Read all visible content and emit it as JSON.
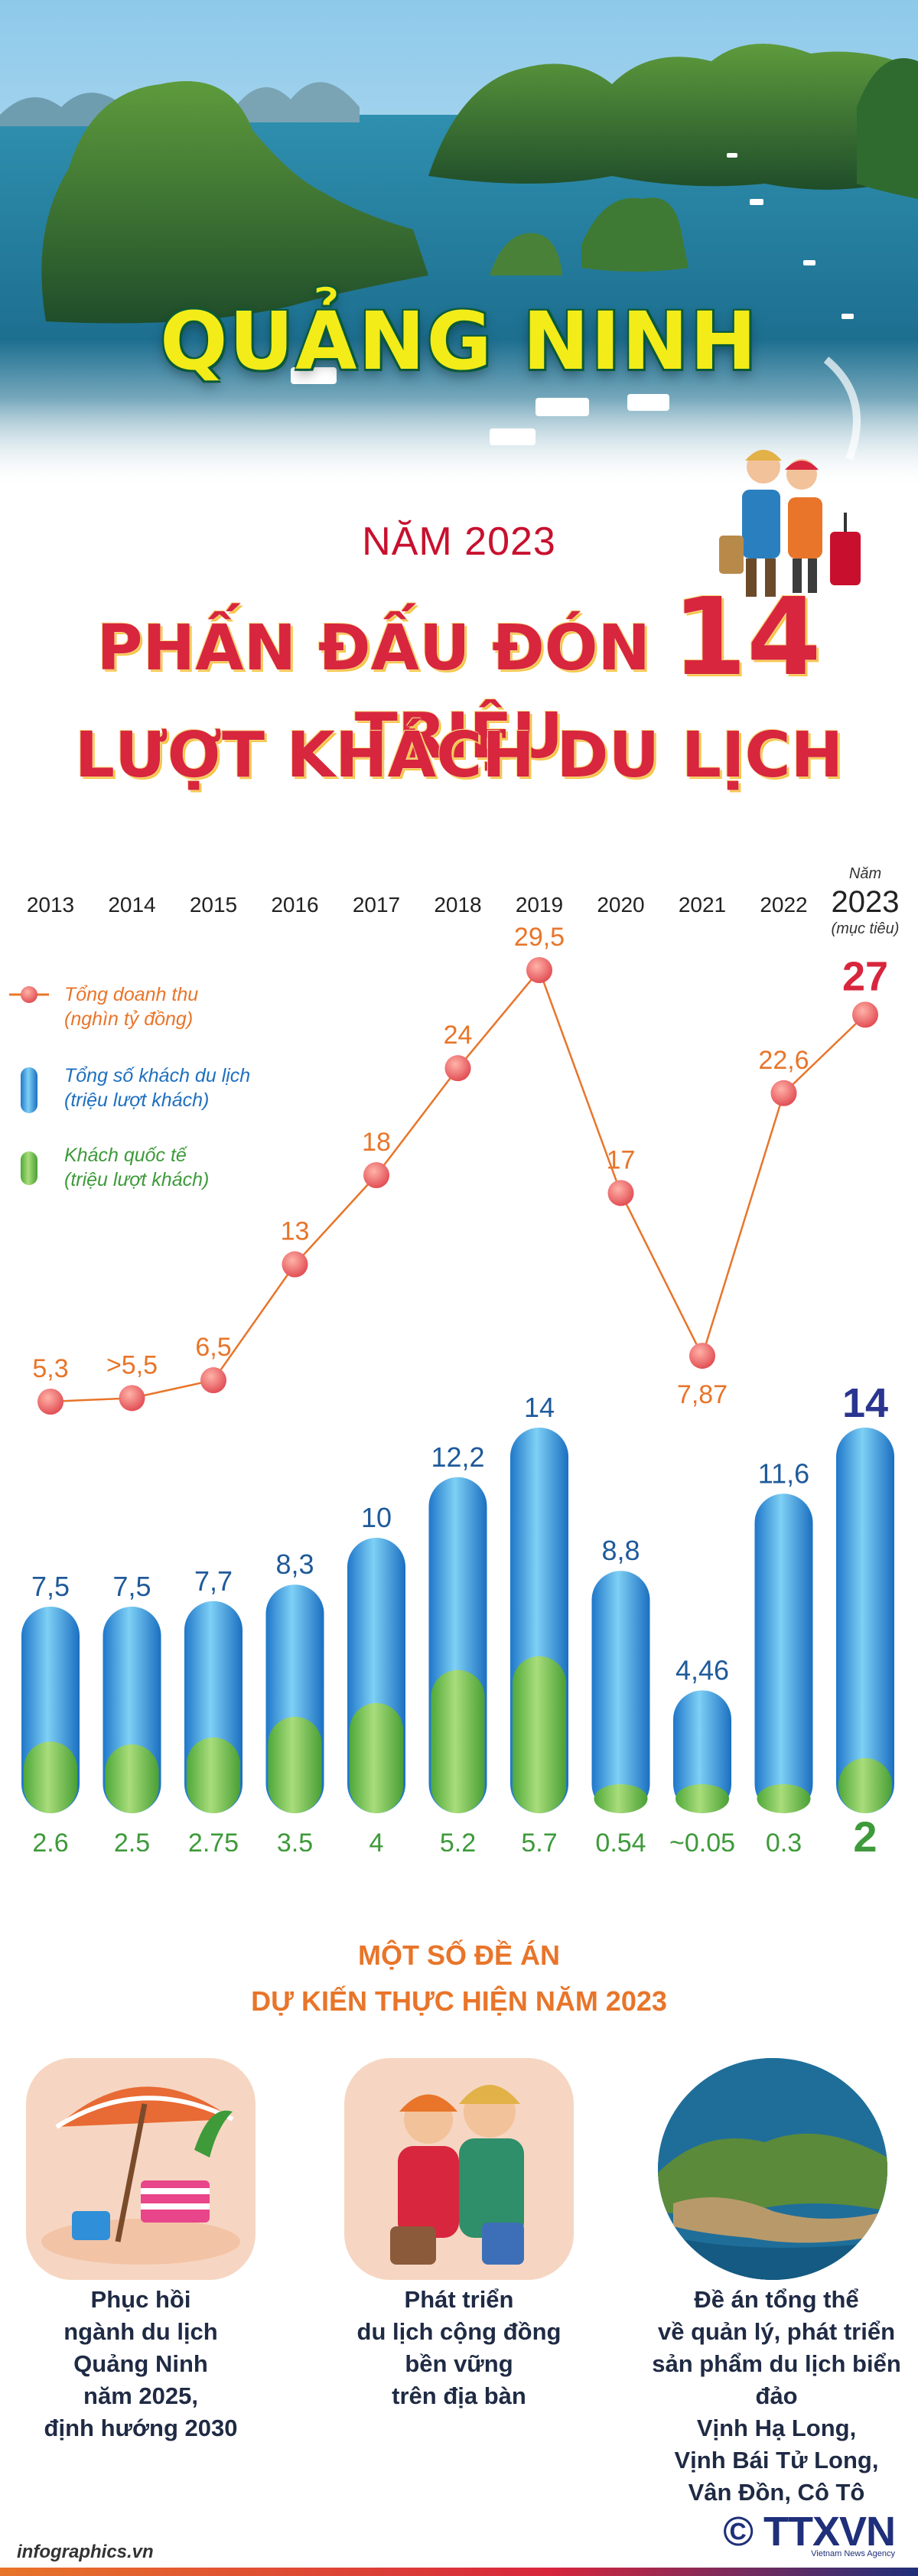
{
  "hero": {
    "title": "QUẢNG NINH",
    "year_line": "NĂM 2023",
    "headline_pre": "PHẤN ĐẤU ĐÓN ",
    "headline_number": "14",
    "headline_post": " TRIỆU",
    "headline_line2": "LƯỢT KHÁCH DU LỊCH"
  },
  "chart_data": {
    "type": "bar",
    "title": "",
    "categories": [
      "2013",
      "2014",
      "2015",
      "2016",
      "2017",
      "2018",
      "2019",
      "2020",
      "2021",
      "2022",
      "2023"
    ],
    "target_header": "Năm",
    "target_note": "(mục tiêu)",
    "series": [
      {
        "name": "Tổng doanh thu",
        "unit": "(nghìn tỷ đồng)",
        "type": "line",
        "color": "#e8752a",
        "values": [
          5.3,
          5.5,
          6.5,
          13,
          18,
          24,
          29.5,
          17,
          7.87,
          22.6,
          27
        ],
        "labels": [
          "5,3",
          ">5,5",
          "6,5",
          "13",
          "18",
          "24",
          "29,5",
          "17",
          "7,87",
          "22,6",
          "27"
        ]
      },
      {
        "name": "Tổng số khách du lịch",
        "unit": "(triệu lượt khách)",
        "type": "bar",
        "color": "#2e8ed8",
        "values": [
          7.5,
          7.5,
          7.7,
          8.3,
          10,
          12.2,
          14,
          8.8,
          4.46,
          11.6,
          14
        ],
        "labels": [
          "7,5",
          "7,5",
          "7,7",
          "8,3",
          "10",
          "12,2",
          "14",
          "8,8",
          "4,46",
          "11,6",
          "14"
        ]
      },
      {
        "name": "Khách quốc tế",
        "unit": "(triệu lượt khách)",
        "type": "bar",
        "color": "#6fbf4a",
        "values": [
          2.6,
          2.5,
          2.75,
          3.5,
          4,
          5.2,
          5.7,
          0.54,
          0.05,
          0.3,
          2
        ],
        "labels": [
          "2,6",
          "2,5",
          "2,75",
          "3,5",
          "4",
          "5,2",
          "5,7",
          "0,54",
          "~0,05",
          "0,3",
          "2"
        ]
      }
    ],
    "highlight_colors": {
      "revenue": "#d7263d",
      "visitors": "#2a3590",
      "international": "#3e9a3a",
      "axis_text": "#222222"
    }
  },
  "projects": {
    "title_line1": "MỘT SỐ ĐỀ ÁN",
    "title_line2": "DỰ KIẾN THỰC HIỆN NĂM 2023",
    "items": [
      {
        "icon": "beach-umbrella-icon",
        "text": "Phục hồi\nngành du lịch\nQuảng Ninh\nnăm 2025,\nđịnh hướng 2030"
      },
      {
        "icon": "community-tourists-icon",
        "text": "Phát triển\ndu lịch cộng đồng\nbền vững\ntrên địa bàn"
      },
      {
        "icon": "island-coast-icon",
        "text": "Đề án tổng thể\nvề quản lý, phát triển\nsản phẩm du lịch biển đảo\nVịnh Hạ Long,\nVịnh Bái Tử Long,\nVân Đồn, Cô Tô"
      }
    ]
  },
  "footer": {
    "source": "infographics.vn",
    "brand": "© TTXVN",
    "brand_sub": "Vietnam News Agency"
  }
}
